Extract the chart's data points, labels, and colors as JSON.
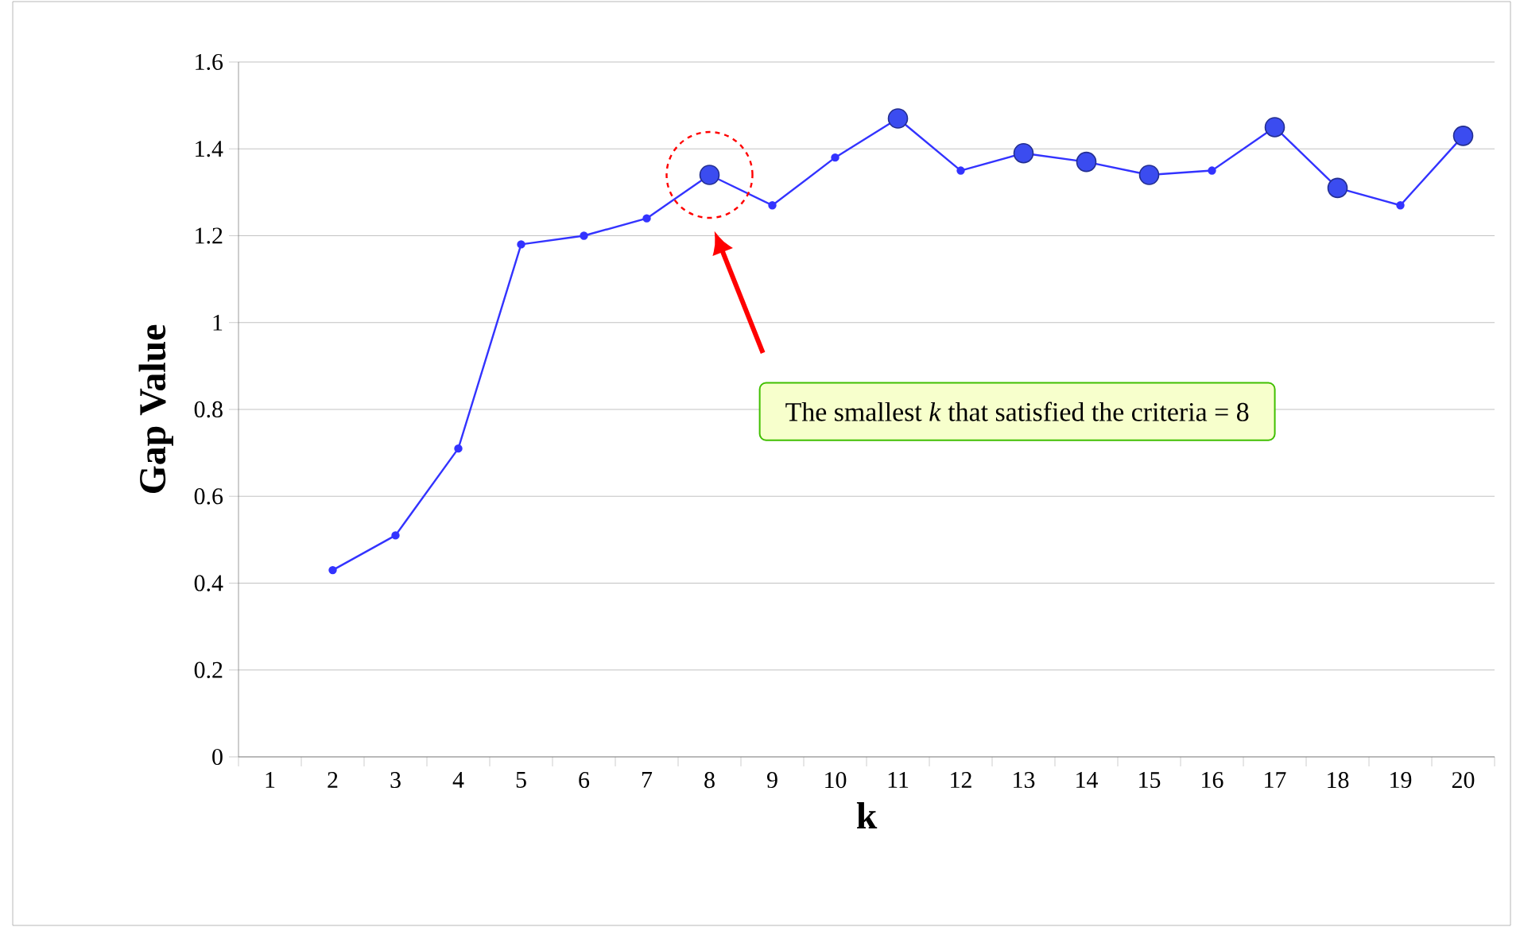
{
  "chart_data": {
    "type": "line",
    "xlabel": "k",
    "ylabel": "Gap Value",
    "categories": [
      "1",
      "2",
      "3",
      "4",
      "5",
      "6",
      "7",
      "8",
      "9",
      "10",
      "11",
      "12",
      "13",
      "14",
      "15",
      "16",
      "17",
      "18",
      "19",
      "20"
    ],
    "series": [
      {
        "color": "#3333ff",
        "marker": "circle",
        "values": [
          null,
          0.43,
          0.51,
          0.71,
          1.18,
          1.2,
          1.24,
          1.34,
          1.27,
          1.38,
          1.47,
          1.35,
          1.39,
          1.37,
          1.34,
          1.35,
          1.45,
          1.31,
          1.27,
          1.43
        ]
      },
      {
        "type": "scatter",
        "color": "#3b4cf0",
        "marker": "circle",
        "x": [
          "8",
          "11",
          "13",
          "14",
          "15",
          "17",
          "18",
          "20"
        ],
        "values": [
          1.34,
          1.47,
          1.39,
          1.37,
          1.34,
          1.45,
          1.31,
          1.43
        ]
      }
    ],
    "ylim": [
      0,
      1.6
    ],
    "yticks": [
      0,
      0.2,
      0.4,
      0.6,
      0.8,
      1,
      1.2,
      1.4,
      1.6
    ],
    "grid": "y",
    "annotations": [
      "The smallest *k* that satisfied the criteria = 8"
    ]
  }
}
